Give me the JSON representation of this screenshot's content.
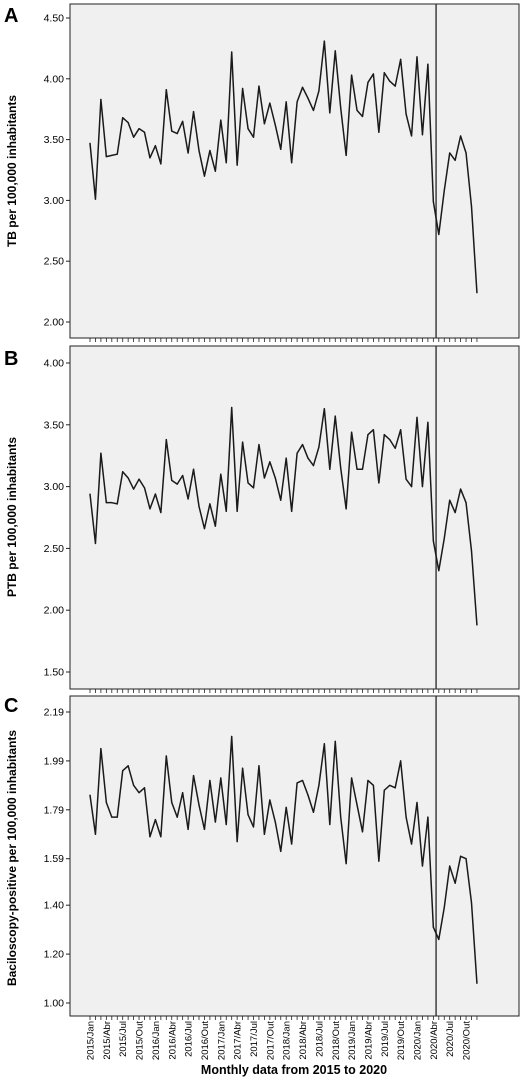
{
  "figure": {
    "x_axis_label": "Monthly data from 2015 to 2020",
    "x_tick_labels": [
      "2015/Jan",
      "2015/Abr",
      "2015/Jul",
      "2015/Out",
      "2016/Jan",
      "2016/Abr",
      "2016/Jul",
      "2016/Out",
      "2017/Jan",
      "2017/Abr",
      "2017/Jul",
      "2017/Out",
      "2018/Jan",
      "2018/Abr",
      "2018/Jul",
      "2018/Out",
      "2019/Jan",
      "2019/Abr",
      "2019/Jul",
      "2019/Out",
      "2020/Jan",
      "2020/Abr",
      "2020/Jul",
      "2020/Out"
    ],
    "line_color": "#1a1a1a",
    "panel_background": "#f0f0f0",
    "intervention_line_month_index": 63.5
  },
  "chart_data": [
    {
      "type": "line",
      "panel": "A",
      "ylabel": "TB per 100,000 inhabitants",
      "ylim": [
        2.0,
        4.5
      ],
      "yticks": [
        "2.00",
        "2.50",
        "3.00",
        "3.50",
        "4.00",
        "4.50"
      ],
      "grid": false,
      "series": [
        {
          "values": [
            3.47,
            3.01,
            3.83,
            3.36,
            3.37,
            3.38,
            3.68,
            3.64,
            3.52,
            3.59,
            3.56,
            3.35,
            3.45,
            3.3,
            3.91,
            3.57,
            3.55,
            3.65,
            3.39,
            3.73,
            3.41,
            3.2,
            3.41,
            3.24,
            3.66,
            3.31,
            4.22,
            3.29,
            3.92,
            3.59,
            3.52,
            3.94,
            3.63,
            3.8,
            3.62,
            3.42,
            3.81,
            3.31,
            3.81,
            3.93,
            3.84,
            3.74,
            3.9,
            4.31,
            3.72,
            4.23,
            3.76,
            3.37,
            4.03,
            3.74,
            3.69,
            3.97,
            4.04,
            3.56,
            4.05,
            3.98,
            3.94,
            4.16,
            3.71,
            3.53,
            4.18,
            3.54,
            4.12,
            2.99,
            2.72,
            3.08,
            3.39,
            3.33,
            3.53,
            3.39,
            2.95,
            2.24
          ]
        }
      ]
    },
    {
      "type": "line",
      "panel": "B",
      "ylabel": "PTB per 100,000 inhabitants",
      "ylim": [
        1.5,
        4.0
      ],
      "yticks": [
        "1.50",
        "2.00",
        "2.50",
        "3.00",
        "3.50",
        "4.00"
      ],
      "grid": false,
      "series": [
        {
          "values": [
            2.94,
            2.54,
            3.27,
            2.87,
            2.87,
            2.86,
            3.12,
            3.07,
            2.98,
            3.06,
            2.99,
            2.82,
            2.94,
            2.79,
            3.38,
            3.05,
            3.02,
            3.09,
            2.9,
            3.14,
            2.84,
            2.66,
            2.86,
            2.68,
            3.1,
            2.8,
            3.64,
            2.8,
            3.36,
            3.03,
            2.99,
            3.34,
            3.07,
            3.2,
            3.07,
            2.89,
            3.23,
            2.8,
            3.27,
            3.34,
            3.23,
            3.17,
            3.32,
            3.63,
            3.14,
            3.57,
            3.15,
            2.82,
            3.44,
            3.14,
            3.14,
            3.42,
            3.46,
            3.03,
            3.42,
            3.38,
            3.31,
            3.46,
            3.06,
            3.0,
            3.56,
            3.0,
            3.52,
            2.56,
            2.32,
            2.58,
            2.89,
            2.79,
            2.98,
            2.87,
            2.48,
            1.88
          ]
        }
      ]
    },
    {
      "type": "line",
      "panel": "C",
      "ylabel": "Baciloscopy-positive  per 100,000 inhabitants",
      "ylim": [
        1.0,
        2.19
      ],
      "yticks": [
        "1.00",
        "1.20",
        "1.40",
        "1.59",
        "1.79",
        "1.99",
        "2.19"
      ],
      "grid": false,
      "series": [
        {
          "values": [
            1.85,
            1.69,
            2.04,
            1.82,
            1.76,
            1.76,
            1.95,
            1.97,
            1.89,
            1.86,
            1.88,
            1.68,
            1.75,
            1.68,
            2.01,
            1.82,
            1.76,
            1.86,
            1.71,
            1.93,
            1.81,
            1.71,
            1.91,
            1.74,
            1.92,
            1.73,
            2.09,
            1.66,
            1.96,
            1.77,
            1.72,
            1.97,
            1.69,
            1.83,
            1.74,
            1.62,
            1.8,
            1.65,
            1.9,
            1.91,
            1.85,
            1.78,
            1.89,
            2.06,
            1.73,
            2.07,
            1.76,
            1.57,
            1.92,
            1.81,
            1.7,
            1.91,
            1.89,
            1.58,
            1.87,
            1.89,
            1.88,
            1.99,
            1.76,
            1.65,
            1.82,
            1.56,
            1.76,
            1.31,
            1.26,
            1.39,
            1.56,
            1.49,
            1.6,
            1.59,
            1.41,
            1.08
          ]
        }
      ]
    }
  ]
}
